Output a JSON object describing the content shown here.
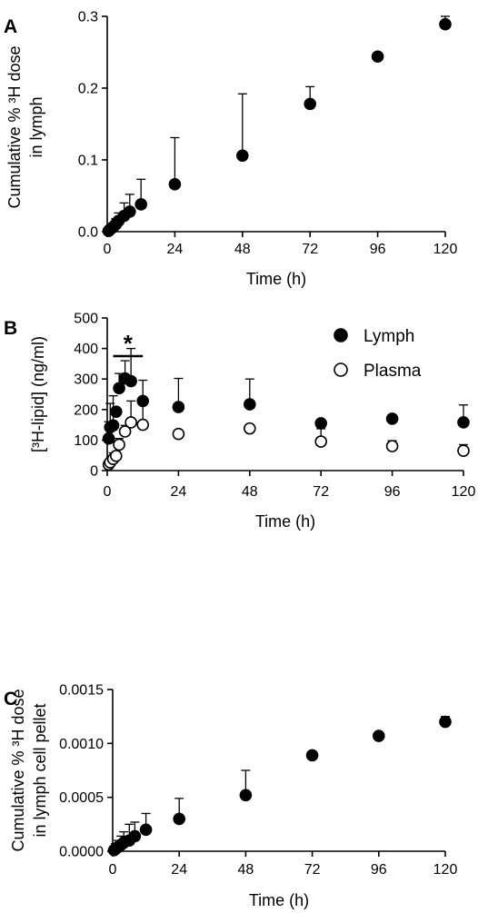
{
  "chart_data": [
    {
      "panel": "A",
      "type": "scatter",
      "xlabel": "Time  (h)",
      "ylabel_lines": [
        "Cumulative % ³H dose",
        "in lymph"
      ],
      "xlim": [
        0,
        120
      ],
      "ylim": [
        0,
        0.3
      ],
      "xticks": [
        0,
        24,
        48,
        72,
        96,
        120
      ],
      "yticks": [
        0.0,
        0.1,
        0.2,
        0.3
      ],
      "ytick_labels": [
        "0.0",
        "0.1",
        "0.2",
        "0.3"
      ],
      "grid": false,
      "series": [
        {
          "marker": "filled-circle",
          "color": "#000000",
          "x": [
            0.5,
            1,
            2,
            3,
            4,
            6,
            8,
            12,
            24,
            48,
            72,
            96,
            120
          ],
          "y": [
            0.001,
            0.003,
            0.006,
            0.01,
            0.015,
            0.022,
            0.028,
            0.038,
            0.066,
            0.106,
            0.178,
            0.244,
            0.289
          ],
          "error_upper": [
            0.003,
            0.007,
            0.012,
            0.018,
            0.026,
            0.04,
            0.052,
            0.073,
            0.131,
            0.192,
            0.202,
            null,
            0.3
          ]
        }
      ]
    },
    {
      "panel": "B",
      "type": "scatter",
      "xlabel": "Time (h)",
      "ylabel": "[³H-lipid] (ng/ml)",
      "xlim": [
        0,
        120
      ],
      "ylim": [
        0,
        500
      ],
      "xticks": [
        0,
        24,
        48,
        72,
        96,
        120
      ],
      "yticks": [
        0,
        100,
        200,
        300,
        400,
        500
      ],
      "ytick_labels": [
        "0",
        "100",
        "200",
        "300",
        "400",
        "500"
      ],
      "grid": false,
      "legend_position": "top-right",
      "significance": {
        "label": "*",
        "x_from": 2,
        "x_to": 12,
        "y": 375
      },
      "series": [
        {
          "name": "Lymph",
          "marker": "filled-circle",
          "color": "#000000",
          "x": [
            0.5,
            1,
            2,
            3,
            4,
            6,
            8,
            12,
            24,
            48,
            72,
            96,
            120
          ],
          "y": [
            105,
            142,
            148,
            193,
            270,
            302,
            293,
            228,
            208,
            217,
            155,
            170,
            158
          ],
          "error_upper": [
            160,
            220,
            245,
            null,
            318,
            360,
            400,
            296,
            302,
            300,
            null,
            null,
            215
          ],
          "error_lower": [
            null,
            null,
            null,
            null,
            null,
            null,
            null,
            null,
            195,
            null,
            null,
            null,
            null
          ]
        },
        {
          "name": "Plasma",
          "marker": "open-circle",
          "color": "#000000",
          "x": [
            0.5,
            1,
            2,
            3,
            4,
            6,
            8,
            12,
            24,
            48,
            72,
            96,
            120
          ],
          "y": [
            20,
            27,
            38,
            48,
            85,
            128,
            158,
            150,
            120,
            138,
            95,
            80,
            65
          ],
          "error_upper": [
            null,
            null,
            58,
            62,
            105,
            148,
            228,
            230,
            null,
            null,
            137,
            98,
            85
          ]
        }
      ]
    },
    {
      "panel": "C",
      "type": "scatter",
      "xlabel": "Time (h)",
      "ylabel_lines": [
        "Cumulative % ³H dose",
        "in lymph cell pellet"
      ],
      "xlim": [
        0,
        120
      ],
      "ylim": [
        0,
        0.0015
      ],
      "xticks": [
        0,
        24,
        48,
        72,
        96,
        120
      ],
      "yticks": [
        0.0,
        0.0005,
        0.001,
        0.0015
      ],
      "ytick_labels": [
        "0.0000",
        "0.0005",
        "0.0010",
        "0.0015"
      ],
      "grid": false,
      "series": [
        {
          "marker": "filled-circle",
          "color": "#000000",
          "x": [
            0.5,
            1,
            2,
            3,
            4,
            6,
            8,
            12,
            24,
            48,
            72,
            96,
            120
          ],
          "y": [
            1e-05,
            2e-05,
            4e-05,
            6e-05,
            8e-05,
            0.0001,
            0.00014,
            0.0002,
            0.0003,
            0.00052,
            0.00089,
            0.00107,
            0.0012
          ],
          "error_upper": [
            4e-05,
            7e-05,
            0.0001,
            0.00014,
            0.00018,
            0.00025,
            0.00027,
            0.00035,
            0.00049,
            0.00075,
            null,
            0.0011,
            0.00125
          ]
        }
      ]
    }
  ]
}
